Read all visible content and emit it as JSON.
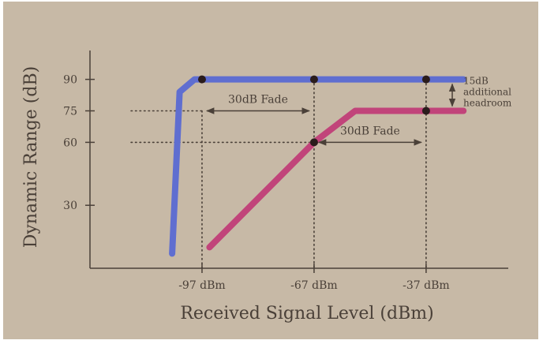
{
  "chart_data": {
    "type": "line",
    "title": "",
    "xlabel": "Received Signal Level (dBm)",
    "ylabel": "Dynamic Range (dB)",
    "xlim": [
      -127,
      -15
    ],
    "ylim": [
      0,
      100
    ],
    "x_ticks": [
      -97,
      -67,
      -37
    ],
    "x_tick_labels": [
      "-97 dBm",
      "-67 dBm",
      "-37 dBm"
    ],
    "y_ticks": [
      30,
      60,
      75,
      90
    ],
    "y_tick_labels": [
      "30",
      "60",
      "75",
      "90"
    ],
    "grid": false,
    "legend": "none",
    "series": [
      {
        "color": "#5f6ed0",
        "x": [
          -105,
          -103,
          -99,
          -97,
          -67,
          -37,
          -27
        ],
        "y": [
          7,
          84,
          90,
          90,
          90,
          90,
          90
        ],
        "markers": [
          [
            -97,
            90
          ],
          [
            -67,
            90
          ],
          [
            -37,
            90
          ]
        ]
      },
      {
        "color": "#c1447a",
        "x": [
          -95,
          -67,
          -56,
          -37,
          -27
        ],
        "y": [
          10,
          60,
          75,
          75,
          75
        ],
        "markers": [
          [
            -67,
            60
          ],
          [
            -37,
            75
          ]
        ]
      }
    ],
    "reference_lines": [
      {
        "x": [
          -116,
          -97
        ],
        "y": [
          75,
          75
        ]
      },
      {
        "x": [
          -116,
          -67
        ],
        "y": [
          60,
          60
        ]
      },
      {
        "x": [
          -97,
          -97
        ],
        "y": [
          75,
          0
        ]
      },
      {
        "x": [
          -67,
          -67
        ],
        "y": [
          90,
          0
        ]
      },
      {
        "x": [
          -37,
          -37
        ],
        "y": [
          90,
          0
        ]
      }
    ],
    "annotations": [
      {
        "id": "fade1",
        "text": "30dB Fade",
        "x1": -97,
        "x2": -67,
        "y": 75
      },
      {
        "id": "fade2",
        "text": "30dB Fade",
        "x1": -67,
        "x2": -37,
        "y": 60
      },
      {
        "id": "headroom",
        "text": [
          "15dB",
          "additional",
          "headroom"
        ],
        "x": -30,
        "y1": 90,
        "y2": 75
      }
    ]
  }
}
